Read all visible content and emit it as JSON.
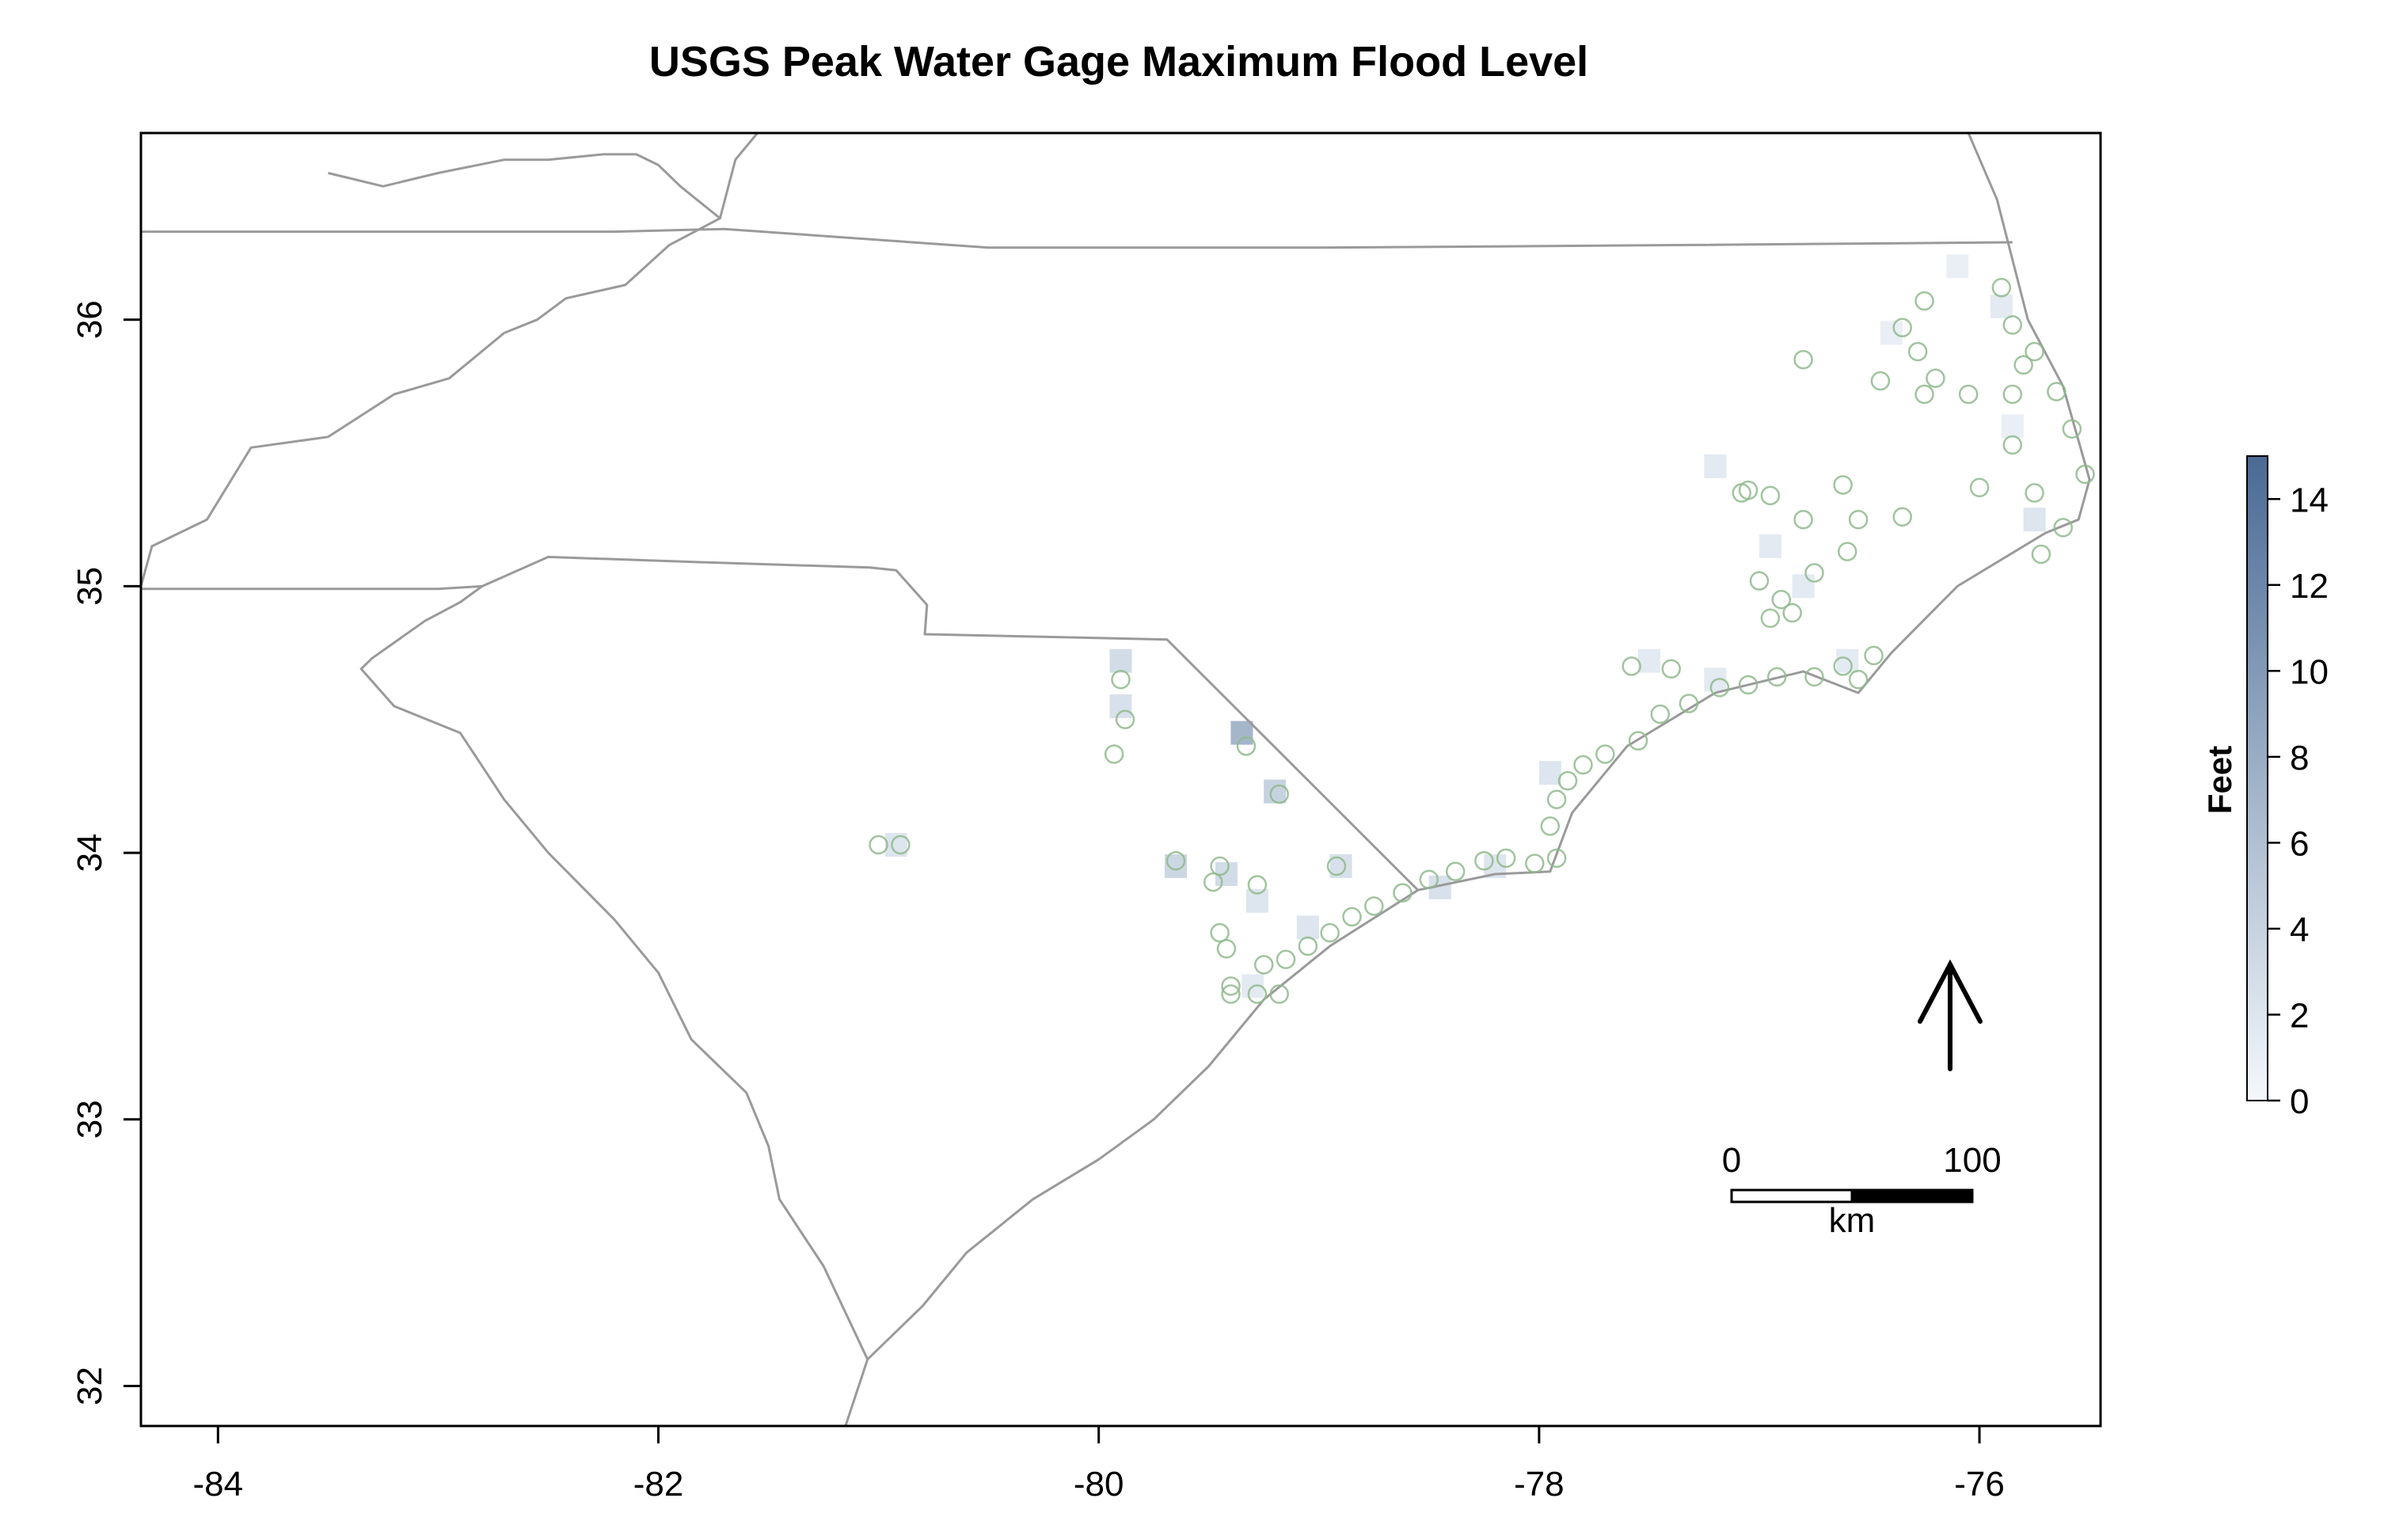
{
  "chart_data": {
    "type": "map",
    "title": "USGS Peak Water Gage Maximum Flood Level",
    "x_ticks": [
      -84,
      -82,
      -80,
      -78,
      -76
    ],
    "y_ticks": [
      32,
      33,
      34,
      35,
      36
    ],
    "xlim": [
      -84.35,
      -75.45
    ],
    "ylim": [
      31.85,
      36.7
    ],
    "legend": {
      "title": "Feet",
      "range": [
        0,
        15
      ],
      "ticks": [
        0,
        2,
        4,
        6,
        8,
        10,
        12,
        14
      ],
      "color_low": "#f4f8fc",
      "color_high": "#4a6a94",
      "placement": "right"
    },
    "scale_bar": {
      "label_start": "0",
      "label_end": "100",
      "unit": "km"
    },
    "north_arrow": true,
    "boundary_color": "#9a9a9a",
    "gage_color": "#8fba8c",
    "boundaries": [
      [
        [
          -84.35,
          36.33
        ],
        [
          -82.2,
          36.33
        ],
        [
          -81.7,
          36.34
        ],
        [
          -80.5,
          36.27
        ],
        [
          -79.0,
          36.27
        ],
        [
          -77.3,
          36.28
        ],
        [
          -75.85,
          36.29
        ]
      ],
      [
        [
          -84.35,
          34.99
        ],
        [
          -83.0,
          34.99
        ],
        [
          -82.8,
          35.0
        ],
        [
          -82.5,
          35.11
        ],
        [
          -81.8,
          35.09
        ],
        [
          -81.04,
          35.07
        ],
        [
          -80.92,
          35.06
        ],
        [
          -80.78,
          34.93
        ],
        [
          -80.79,
          34.82
        ],
        [
          -79.69,
          34.8
        ],
        [
          -78.55,
          33.86
        ]
      ],
      [
        [
          -82.8,
          35.0
        ],
        [
          -82.9,
          34.94
        ],
        [
          -83.06,
          34.87
        ],
        [
          -83.3,
          34.73
        ],
        [
          -83.35,
          34.69
        ],
        [
          -83.2,
          34.55
        ],
        [
          -82.9,
          34.45
        ],
        [
          -82.7,
          34.2
        ],
        [
          -82.5,
          34.0
        ],
        [
          -82.2,
          33.75
        ],
        [
          -82.0,
          33.55
        ],
        [
          -81.85,
          33.3
        ],
        [
          -81.6,
          33.1
        ],
        [
          -81.5,
          32.9
        ],
        [
          -81.45,
          32.7
        ],
        [
          -81.25,
          32.45
        ],
        [
          -81.05,
          32.1
        ],
        [
          -81.15,
          31.85
        ]
      ],
      [
        [
          -81.05,
          32.1
        ],
        [
          -80.8,
          32.3
        ],
        [
          -80.6,
          32.5
        ],
        [
          -80.3,
          32.7
        ],
        [
          -80.0,
          32.85
        ],
        [
          -79.75,
          33.0
        ],
        [
          -79.5,
          33.2
        ],
        [
          -79.25,
          33.45
        ],
        [
          -78.95,
          33.65
        ],
        [
          -78.55,
          33.86
        ],
        [
          -78.2,
          33.92
        ],
        [
          -77.95,
          33.93
        ],
        [
          -77.85,
          34.15
        ],
        [
          -77.6,
          34.4
        ],
        [
          -77.2,
          34.6
        ],
        [
          -76.8,
          34.68
        ],
        [
          -76.55,
          34.6
        ],
        [
          -76.4,
          34.75
        ],
        [
          -76.1,
          35.0
        ],
        [
          -75.7,
          35.2
        ],
        [
          -75.55,
          35.25
        ],
        [
          -75.5,
          35.4
        ],
        [
          -75.62,
          35.75
        ],
        [
          -75.78,
          36.0
        ],
        [
          -75.92,
          36.45
        ],
        [
          -76.05,
          36.7
        ]
      ],
      [
        [
          -84.35,
          35.0
        ],
        [
          -84.3,
          35.15
        ],
        [
          -84.05,
          35.25
        ],
        [
          -83.85,
          35.52
        ],
        [
          -83.5,
          35.56
        ],
        [
          -83.2,
          35.72
        ],
        [
          -82.95,
          35.78
        ],
        [
          -82.7,
          35.95
        ],
        [
          -82.55,
          36.0
        ],
        [
          -82.42,
          36.08
        ],
        [
          -82.15,
          36.13
        ],
        [
          -81.95,
          36.28
        ],
        [
          -81.72,
          36.38
        ],
        [
          -81.65,
          36.6
        ],
        [
          -81.55,
          36.7
        ]
      ],
      [
        [
          -81.72,
          36.38
        ],
        [
          -81.9,
          36.5
        ],
        [
          -82.0,
          36.58
        ],
        [
          -82.1,
          36.62
        ],
        [
          -82.25,
          36.62
        ],
        [
          -82.5,
          36.6
        ],
        [
          -82.7,
          36.6
        ],
        [
          -83.0,
          36.55
        ],
        [
          -83.25,
          36.5
        ],
        [
          -83.5,
          36.55
        ]
      ]
    ],
    "flood_cells": [
      {
        "lon": -79.35,
        "lat": 34.45,
        "feet": 7.0
      },
      {
        "lon": -79.2,
        "lat": 34.23,
        "feet": 4.0
      },
      {
        "lon": -79.9,
        "lat": 34.72,
        "feet": 3.0
      },
      {
        "lon": -79.9,
        "lat": 34.55,
        "feet": 2.5
      },
      {
        "lon": -79.65,
        "lat": 33.95,
        "feet": 3.5
      },
      {
        "lon": -79.42,
        "lat": 33.92,
        "feet": 3.0
      },
      {
        "lon": -79.28,
        "lat": 33.82,
        "feet": 2.0
      },
      {
        "lon": -78.9,
        "lat": 33.95,
        "feet": 2.5
      },
      {
        "lon": -80.92,
        "lat": 34.03,
        "feet": 2.0
      },
      {
        "lon": -78.45,
        "lat": 33.87,
        "feet": 2.5
      },
      {
        "lon": -77.2,
        "lat": 35.45,
        "feet": 1.5
      },
      {
        "lon": -76.95,
        "lat": 35.15,
        "feet": 1.5
      },
      {
        "lon": -76.8,
        "lat": 35.0,
        "feet": 1.5
      },
      {
        "lon": -76.4,
        "lat": 35.95,
        "feet": 1.0
      },
      {
        "lon": -75.9,
        "lat": 36.05,
        "feet": 1.5
      },
      {
        "lon": -77.5,
        "lat": 34.72,
        "feet": 1.5
      },
      {
        "lon": -77.95,
        "lat": 34.3,
        "feet": 2.0
      },
      {
        "lon": -79.05,
        "lat": 33.72,
        "feet": 2.0
      },
      {
        "lon": -79.3,
        "lat": 33.5,
        "feet": 1.5
      },
      {
        "lon": -75.75,
        "lat": 35.25,
        "feet": 2.0
      },
      {
        "lon": -78.2,
        "lat": 33.95,
        "feet": 2.0
      },
      {
        "lon": -77.2,
        "lat": 34.65,
        "feet": 1.5
      },
      {
        "lon": -76.6,
        "lat": 34.72,
        "feet": 1.5
      },
      {
        "lon": -75.85,
        "lat": 35.6,
        "feet": 1.0
      },
      {
        "lon": -76.1,
        "lat": 36.2,
        "feet": 1.0
      }
    ],
    "gages": [
      [
        -79.9,
        34.65
      ],
      [
        -79.88,
        34.5
      ],
      [
        -79.93,
        34.37
      ],
      [
        -79.33,
        34.4
      ],
      [
        -79.18,
        34.22
      ],
      [
        -79.65,
        33.97
      ],
      [
        -79.45,
        33.95
      ],
      [
        -79.48,
        33.89
      ],
      [
        -79.28,
        33.88
      ],
      [
        -78.92,
        33.95
      ],
      [
        -81.0,
        34.03
      ],
      [
        -80.9,
        34.03
      ],
      [
        -79.45,
        33.7
      ],
      [
        -79.42,
        33.64
      ],
      [
        -79.15,
        33.6
      ],
      [
        -79.25,
        33.58
      ],
      [
        -79.4,
        33.5
      ],
      [
        -79.4,
        33.47
      ],
      [
        -79.28,
        33.47
      ],
      [
        -79.18,
        33.47
      ],
      [
        -79.05,
        33.65
      ],
      [
        -78.95,
        33.7
      ],
      [
        -78.85,
        33.76
      ],
      [
        -78.75,
        33.8
      ],
      [
        -78.62,
        33.85
      ],
      [
        -78.5,
        33.9
      ],
      [
        -78.38,
        33.93
      ],
      [
        -78.25,
        33.97
      ],
      [
        -78.15,
        33.98
      ],
      [
        -78.02,
        33.96
      ],
      [
        -77.92,
        33.98
      ],
      [
        -77.95,
        34.1
      ],
      [
        -77.92,
        34.2
      ],
      [
        -77.87,
        34.27
      ],
      [
        -77.8,
        34.33
      ],
      [
        -77.7,
        34.37
      ],
      [
        -77.55,
        34.42
      ],
      [
        -77.45,
        34.52
      ],
      [
        -77.32,
        34.56
      ],
      [
        -77.18,
        34.62
      ],
      [
        -77.05,
        34.63
      ],
      [
        -76.92,
        34.66
      ],
      [
        -76.75,
        34.66
      ],
      [
        -76.62,
        34.7
      ],
      [
        -76.55,
        34.65
      ],
      [
        -77.58,
        34.7
      ],
      [
        -76.48,
        34.74
      ],
      [
        -76.9,
        34.95
      ],
      [
        -76.95,
        34.88
      ],
      [
        -76.85,
        34.9
      ],
      [
        -77.0,
        35.02
      ],
      [
        -76.75,
        35.05
      ],
      [
        -76.6,
        35.13
      ],
      [
        -76.55,
        35.25
      ],
      [
        -76.62,
        35.38
      ],
      [
        -76.8,
        35.25
      ],
      [
        -77.05,
        35.36
      ],
      [
        -77.08,
        35.35
      ],
      [
        -76.95,
        35.34
      ],
      [
        -76.35,
        35.26
      ],
      [
        -76.45,
        35.77
      ],
      [
        -76.35,
        35.97
      ],
      [
        -76.25,
        36.07
      ],
      [
        -76.28,
        35.88
      ],
      [
        -76.2,
        35.78
      ],
      [
        -76.25,
        35.72
      ],
      [
        -76.05,
        35.72
      ],
      [
        -75.85,
        35.72
      ],
      [
        -76.0,
        35.37
      ],
      [
        -75.85,
        35.53
      ],
      [
        -75.75,
        35.35
      ],
      [
        -75.62,
        35.22
      ],
      [
        -75.72,
        35.12
      ],
      [
        -75.52,
        35.42
      ],
      [
        -75.58,
        35.59
      ],
      [
        -75.65,
        35.73
      ],
      [
        -75.8,
        35.83
      ],
      [
        -75.75,
        35.88
      ],
      [
        -75.85,
        35.98
      ],
      [
        -75.9,
        36.12
      ],
      [
        -76.8,
        35.85
      ],
      [
        -77.4,
        34.69
      ]
    ]
  }
}
